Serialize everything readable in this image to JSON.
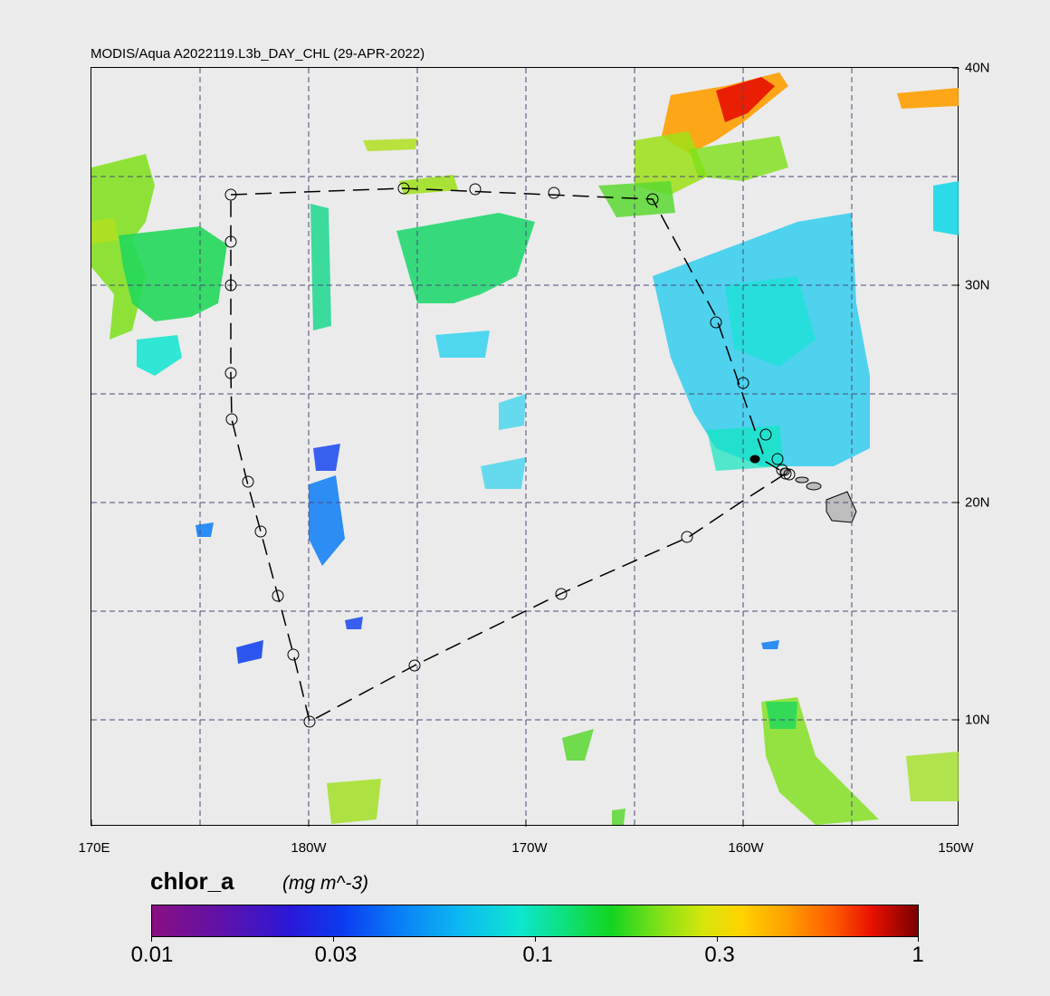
{
  "title": "MODIS/Aqua A2022119.L3b_DAY_CHL (29-APR-2022)",
  "map": {
    "lon_labels": [
      "170E",
      "180W",
      "170W",
      "160W",
      "150W"
    ],
    "lat_labels": [
      "40N",
      "30N",
      "20N",
      "10N"
    ],
    "extent": {
      "lon_min": 170,
      "lon_max": 210,
      "lat_min": 5,
      "lat_max": 40
    },
    "gridlines": "dashed",
    "cruise_track_style": "dashed with circle markers"
  },
  "colorbar": {
    "variable": "chlor_a",
    "units": "(mg m^-3)",
    "tick_labels": [
      "0.01",
      "0.03",
      "0.1",
      "0.3",
      "1"
    ],
    "scale": "log",
    "range": [
      0.01,
      1
    ]
  },
  "colors": {
    "background": "#ebebeb",
    "grid": "#4a4a7a",
    "land": "#bdbdbd"
  }
}
